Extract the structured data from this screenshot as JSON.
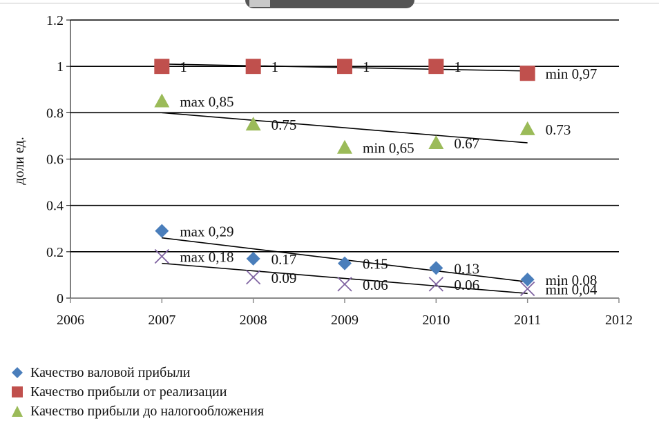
{
  "chart_data": {
    "type": "scatter",
    "ylabel": "доли ед.",
    "xlim": [
      2006,
      2012
    ],
    "ylim": [
      0,
      1.2
    ],
    "x_ticks": [
      "2006",
      "2007",
      "2008",
      "2009",
      "2010",
      "2011",
      "2012"
    ],
    "y_ticks": [
      "0",
      "0.2",
      "0.4",
      "0.6",
      "0.8",
      "1",
      "1.2"
    ],
    "grid": true,
    "legend_position": "bottom-left",
    "series": [
      {
        "name": "Качество валовой прибыли",
        "marker": "diamond",
        "color": "#4a7ebb",
        "x": [
          2007,
          2008,
          2009,
          2010,
          2011
        ],
        "y": [
          0.29,
          0.17,
          0.15,
          0.13,
          0.08
        ],
        "labels": [
          "max 0,29",
          "0.17",
          "0.15",
          "0.13",
          "min 0.08"
        ],
        "trend": [
          0.26,
          0.07
        ]
      },
      {
        "name": "Качество прибыли от реализации",
        "marker": "square",
        "color": "#c0504d",
        "x": [
          2007,
          2008,
          2009,
          2010,
          2011
        ],
        "y": [
          1,
          1,
          1,
          1,
          0.97
        ],
        "labels": [
          "1",
          "1",
          "1",
          "1",
          "min 0,97"
        ],
        "trend": [
          1.01,
          0.98
        ]
      },
      {
        "name": "Качество прибыли до налогообложения",
        "marker": "triangle",
        "color": "#9bbb59",
        "x": [
          2007,
          2008,
          2009,
          2010,
          2011
        ],
        "y": [
          0.85,
          0.75,
          0.65,
          0.67,
          0.73
        ],
        "labels": [
          "max 0,85",
          "0.75",
          "min 0,65",
          "0.67",
          "0.73"
        ],
        "trend": [
          0.8,
          0.67
        ]
      },
      {
        "name": "",
        "marker": "x",
        "color": "#8064a2",
        "x": [
          2007,
          2008,
          2009,
          2010,
          2011
        ],
        "y": [
          0.18,
          0.09,
          0.06,
          0.06,
          0.04
        ],
        "labels": [
          "max 0,18",
          "0.09",
          "0.06",
          "0.06",
          "min 0,04"
        ],
        "trend": [
          0.15,
          0.02
        ]
      }
    ]
  }
}
